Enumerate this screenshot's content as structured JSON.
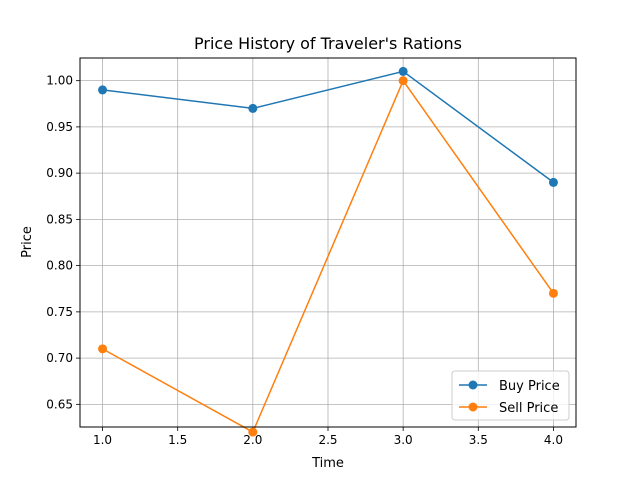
{
  "chart_data": {
    "type": "line",
    "title": "Price History of Traveler's Rations",
    "xlabel": "Time",
    "ylabel": "Price",
    "x": [
      1.0,
      2.0,
      3.0,
      4.0
    ],
    "series": [
      {
        "name": "Buy Price",
        "values": [
          0.99,
          0.97,
          1.01,
          0.89
        ],
        "color": "#1f77b4"
      },
      {
        "name": "Sell Price",
        "values": [
          0.71,
          0.62,
          1.0,
          0.77
        ],
        "color": "#ff7f0e"
      }
    ],
    "xlim": [
      0.85,
      4.15
    ],
    "ylim": [
      0.6255,
      1.0245
    ],
    "xticks": [
      1.0,
      1.5,
      2.0,
      2.5,
      3.0,
      3.5,
      4.0
    ],
    "xtick_labels": [
      "1.0",
      "1.5",
      "2.0",
      "2.5",
      "3.0",
      "3.5",
      "4.0"
    ],
    "yticks": [
      0.65,
      0.7,
      0.75,
      0.8,
      0.85,
      0.9,
      0.95,
      1.0
    ],
    "ytick_labels": [
      "0.65",
      "0.70",
      "0.75",
      "0.80",
      "0.85",
      "0.90",
      "0.95",
      "1.00"
    ],
    "grid": true,
    "legend_position": "lower-right"
  }
}
